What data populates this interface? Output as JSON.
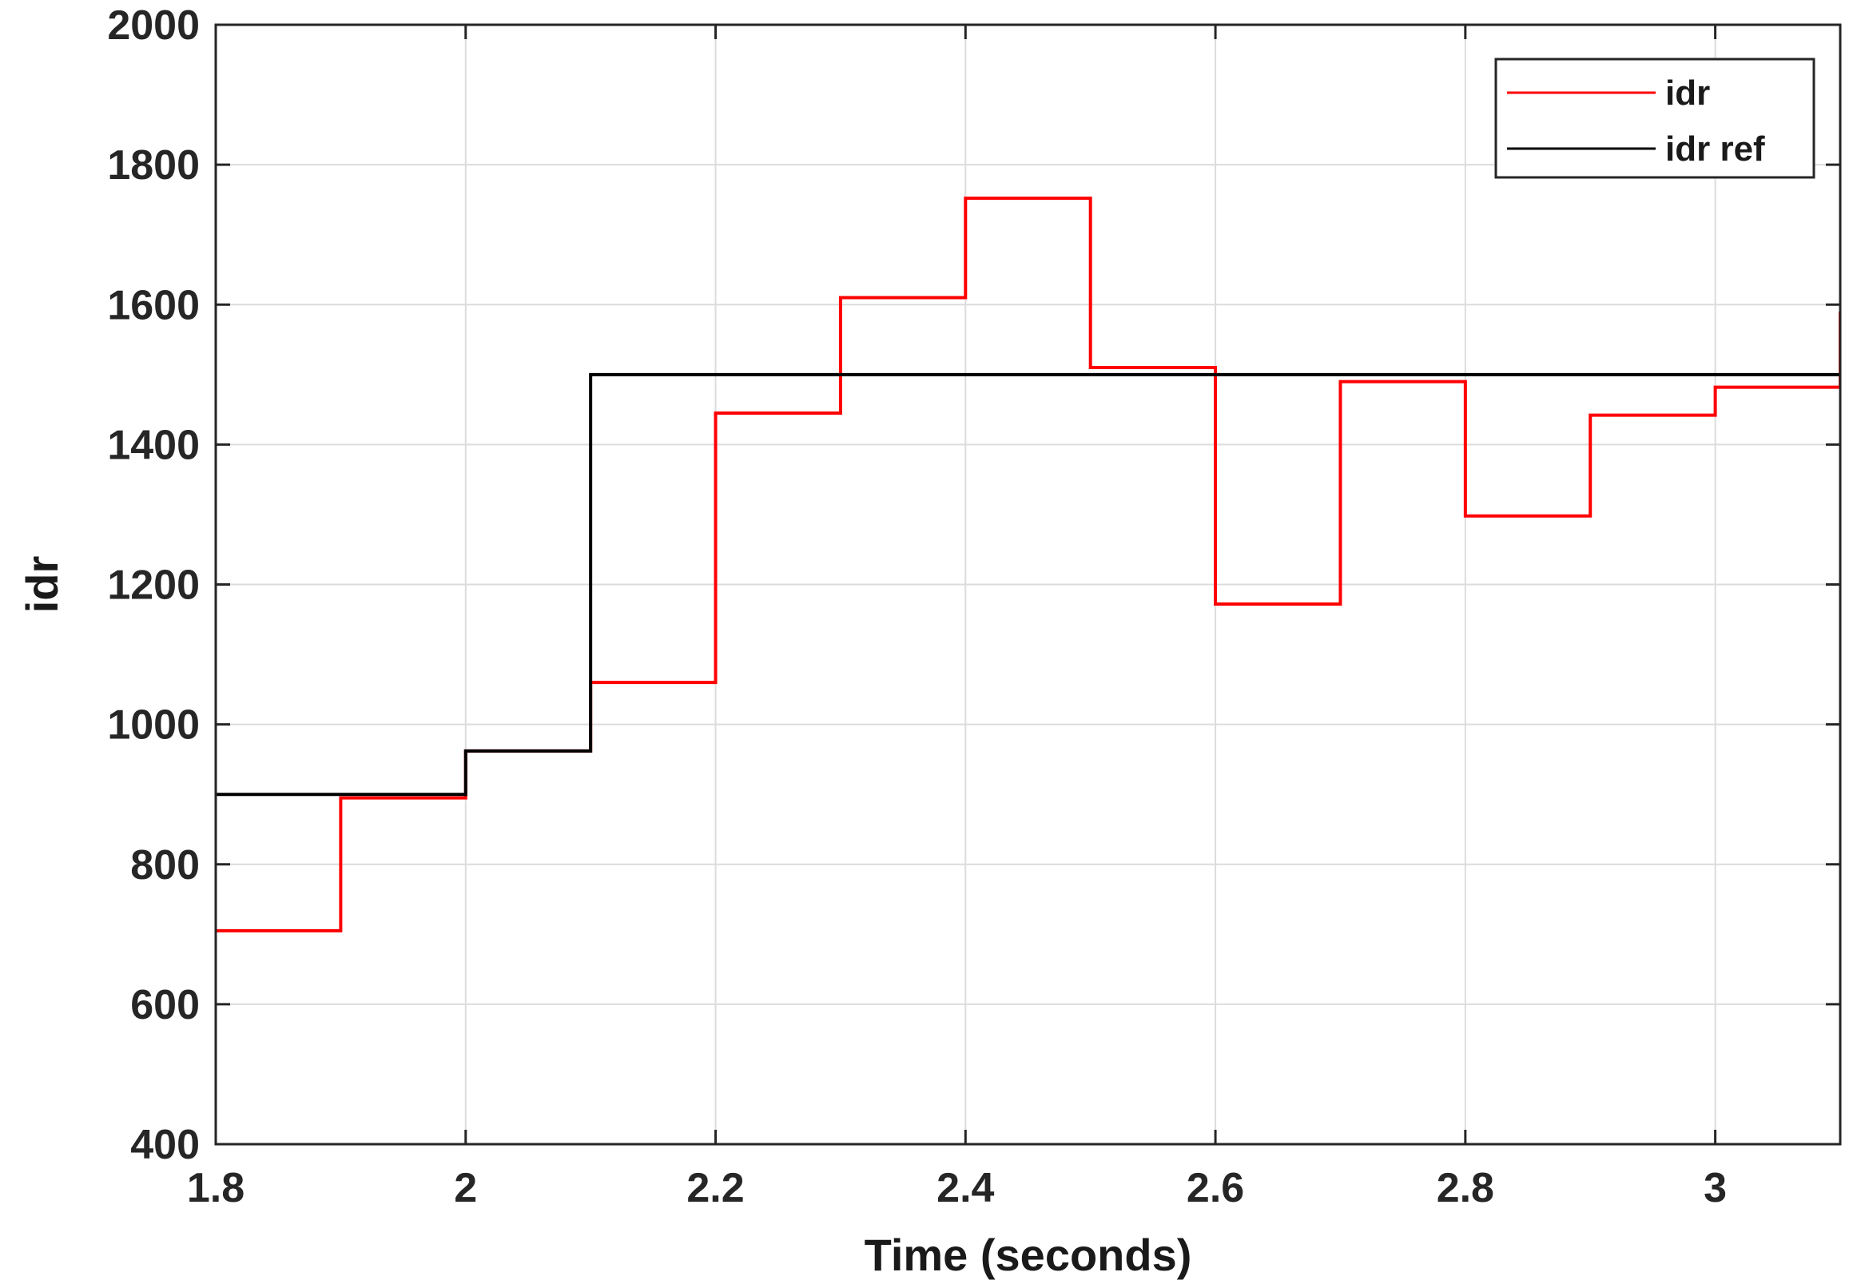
{
  "chart_data": {
    "type": "line",
    "title": "",
    "xlabel": "Time (seconds)",
    "ylabel": "idr",
    "xlim": [
      1.8,
      3.1
    ],
    "ylim": [
      400,
      2000
    ],
    "xticks": [
      1.8,
      2.0,
      2.2,
      2.4,
      2.6,
      2.8,
      3.0
    ],
    "xtick_labels": [
      "1.8",
      "2",
      "2.2",
      "2.4",
      "2.6",
      "2.8",
      "3"
    ],
    "yticks": [
      400,
      600,
      800,
      1000,
      1200,
      1400,
      1600,
      1800,
      2000
    ],
    "ytick_labels": [
      "400",
      "600",
      "800",
      "1000",
      "1200",
      "1400",
      "1600",
      "1800",
      "2000"
    ],
    "grid": true,
    "legend_position": "top-right",
    "step": true,
    "series": [
      {
        "name": "idr",
        "color": "#ff0000",
        "x": [
          1.8,
          1.9,
          2.0,
          2.1,
          2.2,
          2.3,
          2.4,
          2.5,
          2.6,
          2.7,
          2.8,
          2.9,
          3.0,
          3.1
        ],
        "y": [
          705,
          895,
          962,
          1060,
          1445,
          1610,
          1752,
          1510,
          1172,
          1490,
          1298,
          1442,
          1482,
          1590
        ]
      },
      {
        "name": "idr ref",
        "color": "#000000",
        "x": [
          1.8,
          2.0,
          2.1,
          3.1
        ],
        "y": [
          900,
          962,
          1500,
          1500
        ]
      }
    ]
  }
}
